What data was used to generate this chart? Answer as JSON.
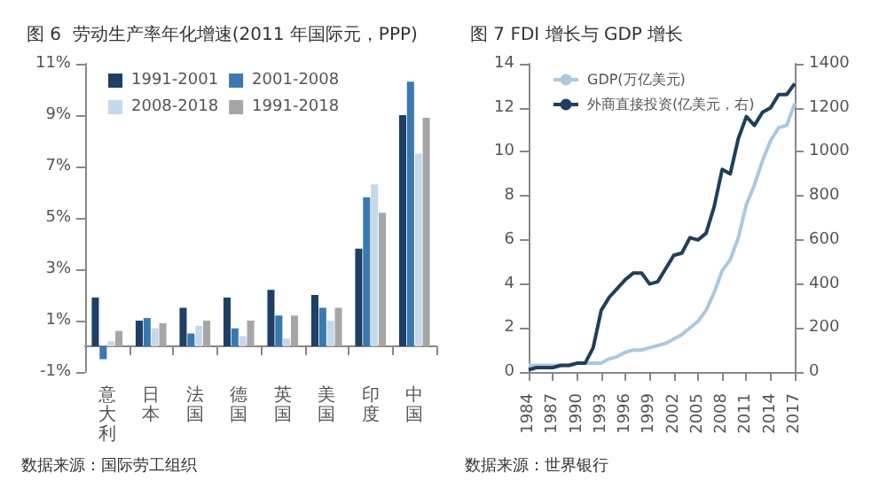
{
  "chart_data": [
    {
      "type": "bar",
      "title": "图 6  劳动生产率年化增速(2011 年国际元，PPP)",
      "categories": [
        "意大利",
        "日本",
        "法国",
        "德国",
        "英国",
        "美国",
        "印度",
        "中国"
      ],
      "series": [
        {
          "name": "1991-2001",
          "color": "#1f3f66",
          "values": [
            1.9,
            1.0,
            1.5,
            1.9,
            2.2,
            2.0,
            3.8,
            9.0
          ]
        },
        {
          "name": "2001-2008",
          "color": "#3a78b0",
          "values": [
            -0.5,
            1.1,
            0.5,
            0.7,
            1.2,
            1.5,
            5.8,
            10.3
          ]
        },
        {
          "name": "2008-2018",
          "color": "#c5d9ea",
          "values": [
            0.2,
            0.7,
            0.8,
            0.4,
            0.3,
            1.0,
            6.3,
            7.5
          ]
        },
        {
          "name": "1991-2018",
          "color": "#a6a6a6",
          "values": [
            0.6,
            0.9,
            1.0,
            1.0,
            1.2,
            1.5,
            5.2,
            8.9
          ]
        }
      ],
      "ylim": [
        -1,
        11
      ],
      "yticks": [
        {
          "value": -1,
          "label": "-1%"
        },
        {
          "value": 1,
          "label": "1%"
        },
        {
          "value": 3,
          "label": "3%"
        },
        {
          "value": 5,
          "label": "5%"
        },
        {
          "value": 7,
          "label": "7%"
        },
        {
          "value": 9,
          "label": "9%"
        },
        {
          "value": 11,
          "label": "11%"
        }
      ],
      "legend": "top",
      "grid": false,
      "annotations": [
        "数据来源：国际劳工组织"
      ]
    },
    {
      "type": "line",
      "title": "图 7 FDI 增长与 GDP 增长",
      "x": [
        1984,
        1985,
        1986,
        1987,
        1988,
        1989,
        1990,
        1991,
        1992,
        1993,
        1994,
        1995,
        1996,
        1997,
        1998,
        1999,
        2000,
        2001,
        2002,
        2003,
        2004,
        2005,
        2006,
        2007,
        2008,
        2009,
        2010,
        2011,
        2012,
        2013,
        2014,
        2015,
        2016,
        2017
      ],
      "series": [
        {
          "name": "GDP(万亿美元)",
          "color": "#a9c8e2",
          "values": [
            0.3,
            0.3,
            0.3,
            0.3,
            0.3,
            0.3,
            0.4,
            0.4,
            0.4,
            0.4,
            0.6,
            0.7,
            0.9,
            1.0,
            1.0,
            1.1,
            1.2,
            1.3,
            1.5,
            1.7,
            2.0,
            2.3,
            2.8,
            3.6,
            4.6,
            5.1,
            6.1,
            7.6,
            8.5,
            9.6,
            10.5,
            11.1,
            11.2,
            12.2
          ]
        },
        {
          "name": "外商直接投资(亿美元，右)",
          "color": "#1f3f5c",
          "axis": "y2",
          "values": [
            10,
            20,
            20,
            20,
            30,
            30,
            40,
            40,
            110,
            280,
            340,
            380,
            420,
            450,
            450,
            400,
            410,
            470,
            530,
            540,
            610,
            600,
            630,
            750,
            920,
            900,
            1060,
            1160,
            1120,
            1180,
            1200,
            1260,
            1260,
            1310
          ]
        }
      ],
      "xlim": [
        1984,
        2017
      ],
      "xticks": [
        1984,
        1987,
        1990,
        1993,
        1996,
        1999,
        2002,
        2005,
        2008,
        2011,
        2014,
        2017
      ],
      "ylim": [
        0,
        14
      ],
      "yticks": [
        0,
        2,
        4,
        6,
        8,
        10,
        12,
        14
      ],
      "y2lim": [
        0,
        1400
      ],
      "y2ticks": [
        0,
        200,
        400,
        600,
        800,
        1000,
        1200,
        1400
      ],
      "legend": "top left",
      "marker": "none",
      "line_style": "solid",
      "grid": false,
      "annotations": [
        "数据来源：世界银行"
      ]
    }
  ]
}
